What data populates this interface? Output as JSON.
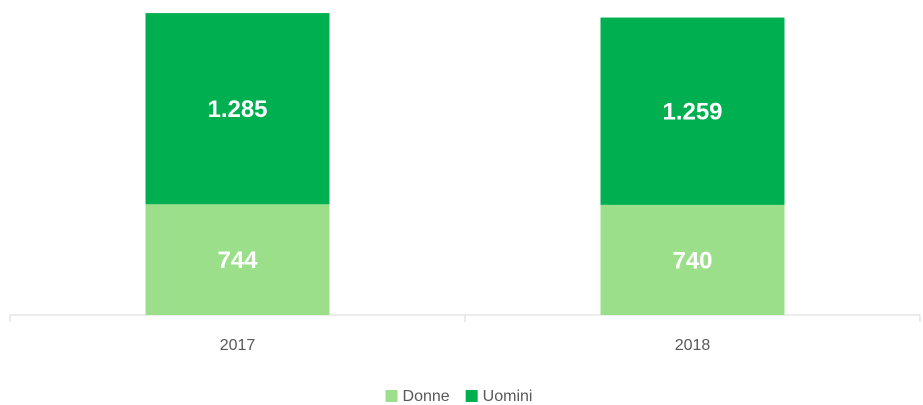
{
  "chart_data": {
    "type": "stacked_bar",
    "categories": [
      "2017",
      "2018"
    ],
    "series": [
      {
        "name": "Donne",
        "color": "#9bdf8a",
        "values": [
          744,
          740
        ]
      },
      {
        "name": "Uomini",
        "color": "#00b050",
        "values": [
          1285,
          1259
        ],
        "value_labels": [
          "1.285",
          "1.259"
        ]
      }
    ],
    "legend": "bottom"
  }
}
